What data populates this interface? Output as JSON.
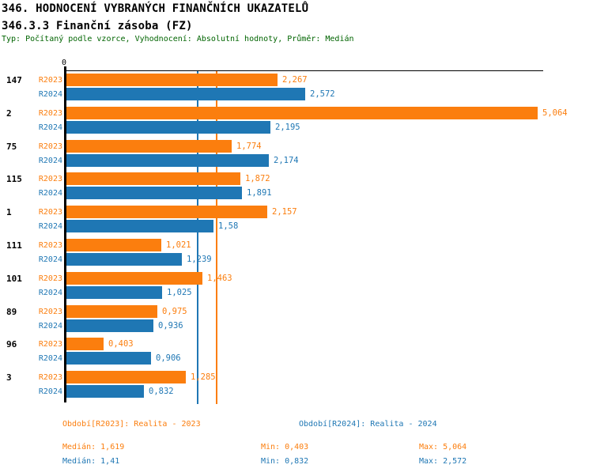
{
  "header": {
    "title_line1": "346. HODNOCENÍ VYBRANÝCH FINANČNÍCH UKAZATELŮ",
    "title_line2": "346.3.3 Finanční zásoba (FZ)",
    "subtitle": "Typ: Počítaný podle vzorce, Vyhodnocení: Absolutní hodnoty, Průměr: Medián"
  },
  "colors": {
    "r2023": "#FB7E0E",
    "r2024": "#1F77B4",
    "axis": "#000000",
    "subtitle_green": "#006400"
  },
  "chart_data": {
    "type": "bar",
    "orientation": "horizontal",
    "title": "346.3.3 Finanční zásoba (FZ)",
    "xlabel": "",
    "ylabel": "",
    "xlim": [
      0,
      5.1
    ],
    "grid": false,
    "axis": {
      "zero_label": "0"
    },
    "legend_position": "bottom",
    "categories": [
      "147",
      "2",
      "75",
      "115",
      "1",
      "111",
      "101",
      "89",
      "96",
      "3"
    ],
    "series": [
      {
        "name": "R2023",
        "color": "#FB7E0E",
        "values": [
          2.267,
          5.064,
          1.774,
          1.872,
          2.157,
          1.021,
          1.463,
          0.975,
          0.403,
          1.285
        ],
        "value_labels": [
          "2,267",
          "5,064",
          "1,774",
          "1,872",
          "2,157",
          "1,021",
          "1,463",
          "0,975",
          "0,403",
          "1,285"
        ],
        "median": 1.619,
        "median_label": "1,619"
      },
      {
        "name": "R2024",
        "color": "#1F77B4",
        "values": [
          2.572,
          2.195,
          2.174,
          1.891,
          1.58,
          1.239,
          1.025,
          0.936,
          0.906,
          0.832
        ],
        "value_labels": [
          "2,572",
          "2,195",
          "2,174",
          "1,891",
          "1,58",
          "1,239",
          "1,025",
          "0,936",
          "0,906",
          "0,832"
        ],
        "median": 1.41,
        "median_label": "1,41"
      }
    ]
  },
  "footer": {
    "r2023": {
      "period": "Období[R2023]: Realita - 2023",
      "median": "Medián: 1,619",
      "min": "Min: 0,403",
      "max": "Max: 5,064"
    },
    "r2024": {
      "period": "Období[R2024]: Realita - 2024",
      "median": "Medián: 1,41",
      "min": "Min: 0,832",
      "max": "Max: 2,572"
    }
  }
}
